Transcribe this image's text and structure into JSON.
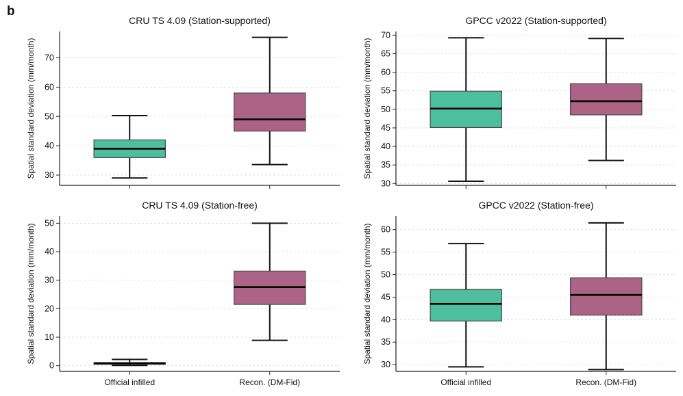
{
  "figure": {
    "panel_letter": "b"
  },
  "colors": {
    "official": "#4dbf9f",
    "recon": "#ac6386",
    "median": "#000000",
    "box_edge": "#4a4a4a",
    "grid": "#d9d9d9"
  },
  "chart_data": [
    {
      "type": "box",
      "title": "CRU TS 4.09 (Station-supported)",
      "ylabel": "Spatial standard deviation (mm/month)",
      "categories": [
        "Official infilled",
        "Recon. (DM-Fid)"
      ],
      "ylim": [
        26.5,
        79
      ],
      "yticks": [
        30,
        40,
        50,
        60,
        70
      ],
      "grid": true,
      "boxes": [
        {
          "name": "Official infilled",
          "whisker_low": 29,
          "q1": 36,
          "median": 39,
          "q3": 42,
          "whisker_high": 50.3
        },
        {
          "name": "Recon. (DM-Fid)",
          "whisker_low": 33.6,
          "q1": 45,
          "median": 49,
          "q3": 58,
          "whisker_high": 77
        }
      ]
    },
    {
      "type": "box",
      "title": "GPCC v2022 (Station-supported)",
      "ylabel": "Spatial standard deviation (mm/month)",
      "categories": [
        "Official infilled",
        "Recon. (DM-Fid)"
      ],
      "ylim": [
        29.5,
        71
      ],
      "yticks": [
        30,
        35,
        40,
        45,
        50,
        55,
        60,
        65,
        70
      ],
      "grid": true,
      "boxes": [
        {
          "name": "Official infilled",
          "whisker_low": 30.6,
          "q1": 45.1,
          "median": 50.2,
          "q3": 54.9,
          "whisker_high": 69.3
        },
        {
          "name": "Recon. (DM-Fid)",
          "whisker_low": 36.2,
          "q1": 48.5,
          "median": 52.2,
          "q3": 56.9,
          "whisker_high": 69.1
        }
      ]
    },
    {
      "type": "box",
      "title": "CRU TS 4.09 (Station-free)",
      "ylabel": "Spatial standard deviation (mm/month)",
      "categories": [
        "Official infilled",
        "Recon. (DM-Fid)"
      ],
      "ylim": [
        -2,
        52.5
      ],
      "yticks": [
        0,
        10,
        20,
        30,
        40,
        50
      ],
      "grid": true,
      "boxes": [
        {
          "name": "Official infilled",
          "whisker_low": 0.1,
          "q1": 0.5,
          "median": 0.8,
          "q3": 1.1,
          "whisker_high": 2.2
        },
        {
          "name": "Recon. (DM-Fid)",
          "whisker_low": 8.9,
          "q1": 21.5,
          "median": 27.6,
          "q3": 33.2,
          "whisker_high": 50
        }
      ]
    },
    {
      "type": "box",
      "title": "GPCC v2022 (Station-free)",
      "ylabel": "Spatial standard deviation (mm/month)",
      "categories": [
        "Official infilled",
        "Recon. (DM-Fid)"
      ],
      "ylim": [
        28.5,
        63
      ],
      "yticks": [
        30,
        35,
        40,
        45,
        50,
        55,
        60
      ],
      "grid": true,
      "boxes": [
        {
          "name": "Official infilled",
          "whisker_low": 29.5,
          "q1": 39.7,
          "median": 43.5,
          "q3": 46.7,
          "whisker_high": 56.9
        },
        {
          "name": "Recon. (DM-Fid)",
          "whisker_low": 28.9,
          "q1": 41,
          "median": 45.5,
          "q3": 49.3,
          "whisker_high": 61.5
        }
      ]
    }
  ]
}
